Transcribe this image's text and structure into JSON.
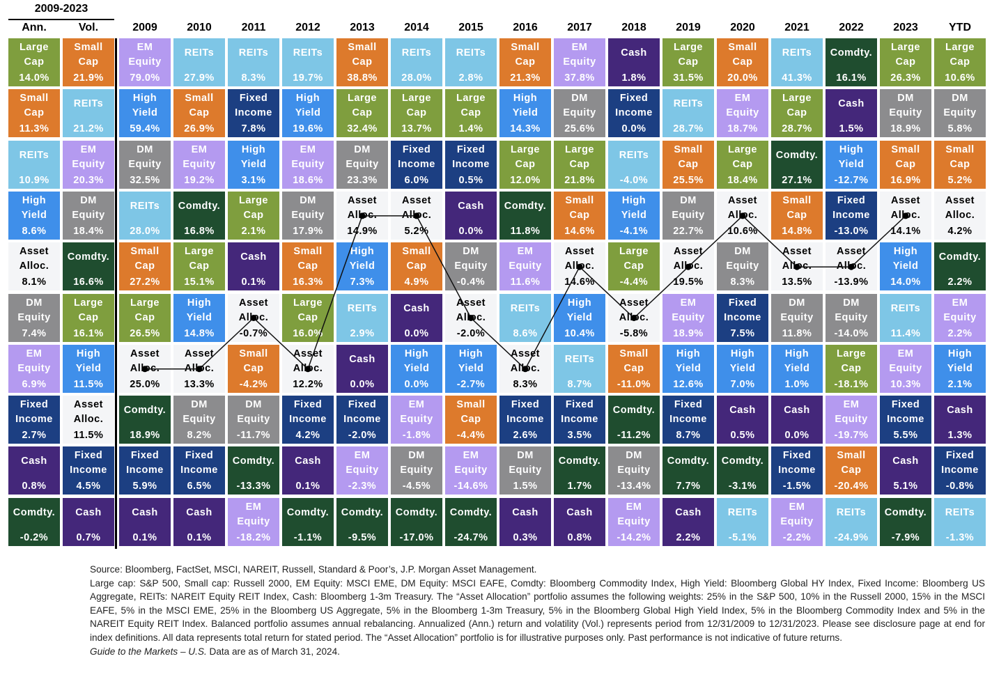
{
  "chart_data": {
    "type": "table",
    "period_header": "2009-2023",
    "colors": {
      "Large Cap": "#7f9e3e",
      "Small Cap": "#dd7a2c",
      "EM Equity": "#b49af0",
      "REITs": "#7ec6e6",
      "High Yield": "#3f8fea",
      "Fixed Income": "#1c3f82",
      "DM Equity": "#8c8c8e",
      "Cash": "#44277a",
      "Comdty.": "#1f4d2f",
      "Asset Alloc.": "#f4f5f7"
    },
    "line_series": "Asset Alloc.",
    "columns": [
      {
        "header": "Ann.",
        "cells": [
          [
            "Large Cap",
            "14.0%"
          ],
          [
            "Small Cap",
            "11.3%"
          ],
          [
            "REITs",
            "10.9%"
          ],
          [
            "High Yield",
            "8.6%"
          ],
          [
            "Asset Alloc.",
            "8.1%"
          ],
          [
            "DM Equity",
            "7.4%"
          ],
          [
            "EM Equity",
            "6.9%"
          ],
          [
            "Fixed Income",
            "2.7%"
          ],
          [
            "Cash",
            "0.8%"
          ],
          [
            "Comdty.",
            "-0.2%"
          ]
        ]
      },
      {
        "header": "Vol.",
        "cells": [
          [
            "Small Cap",
            "21.9%"
          ],
          [
            "REITs",
            "21.2%"
          ],
          [
            "EM Equity",
            "20.3%"
          ],
          [
            "DM Equity",
            "18.4%"
          ],
          [
            "Comdty.",
            "16.6%"
          ],
          [
            "Large Cap",
            "16.1%"
          ],
          [
            "High Yield",
            "11.5%"
          ],
          [
            "Asset Alloc.",
            "11.5%"
          ],
          [
            "Fixed Income",
            "4.5%"
          ],
          [
            "Cash",
            "0.7%"
          ]
        ]
      },
      {
        "header": "2009",
        "cells": [
          [
            "EM Equity",
            "79.0%"
          ],
          [
            "High Yield",
            "59.4%"
          ],
          [
            "DM Equity",
            "32.5%"
          ],
          [
            "REITs",
            "28.0%"
          ],
          [
            "Small Cap",
            "27.2%"
          ],
          [
            "Large Cap",
            "26.5%"
          ],
          [
            "Asset Alloc.",
            "25.0%"
          ],
          [
            "Comdty.",
            "18.9%"
          ],
          [
            "Fixed Income",
            "5.9%"
          ],
          [
            "Cash",
            "0.1%"
          ]
        ]
      },
      {
        "header": "2010",
        "cells": [
          [
            "REITs",
            "27.9%"
          ],
          [
            "Small Cap",
            "26.9%"
          ],
          [
            "EM Equity",
            "19.2%"
          ],
          [
            "Comdty.",
            "16.8%"
          ],
          [
            "Large Cap",
            "15.1%"
          ],
          [
            "High Yield",
            "14.8%"
          ],
          [
            "Asset Alloc.",
            "13.3%"
          ],
          [
            "DM Equity",
            "8.2%"
          ],
          [
            "Fixed Income",
            "6.5%"
          ],
          [
            "Cash",
            "0.1%"
          ]
        ]
      },
      {
        "header": "2011",
        "cells": [
          [
            "REITs",
            "8.3%"
          ],
          [
            "Fixed Income",
            "7.8%"
          ],
          [
            "High Yield",
            "3.1%"
          ],
          [
            "Large Cap",
            "2.1%"
          ],
          [
            "Cash",
            "0.1%"
          ],
          [
            "Asset Alloc.",
            "-0.7%"
          ],
          [
            "Small Cap",
            "-4.2%"
          ],
          [
            "DM Equity",
            "-11.7%"
          ],
          [
            "Comdty.",
            "-13.3%"
          ],
          [
            "EM Equity",
            "-18.2%"
          ]
        ]
      },
      {
        "header": "2012",
        "cells": [
          [
            "REITs",
            "19.7%"
          ],
          [
            "High Yield",
            "19.6%"
          ],
          [
            "EM Equity",
            "18.6%"
          ],
          [
            "DM Equity",
            "17.9%"
          ],
          [
            "Small Cap",
            "16.3%"
          ],
          [
            "Large Cap",
            "16.0%"
          ],
          [
            "Asset Alloc.",
            "12.2%"
          ],
          [
            "Fixed Income",
            "4.2%"
          ],
          [
            "Cash",
            "0.1%"
          ],
          [
            "Comdty.",
            "-1.1%"
          ]
        ]
      },
      {
        "header": "2013",
        "cells": [
          [
            "Small Cap",
            "38.8%"
          ],
          [
            "Large Cap",
            "32.4%"
          ],
          [
            "DM Equity",
            "23.3%"
          ],
          [
            "Asset Alloc.",
            "14.9%"
          ],
          [
            "High Yield",
            "7.3%"
          ],
          [
            "REITs",
            "2.9%"
          ],
          [
            "Cash",
            "0.0%"
          ],
          [
            "Fixed Income",
            "-2.0%"
          ],
          [
            "EM Equity",
            "-2.3%"
          ],
          [
            "Comdty.",
            "-9.5%"
          ]
        ]
      },
      {
        "header": "2014",
        "cells": [
          [
            "REITs",
            "28.0%"
          ],
          [
            "Large Cap",
            "13.7%"
          ],
          [
            "Fixed Income",
            "6.0%"
          ],
          [
            "Asset Alloc.",
            "5.2%"
          ],
          [
            "Small Cap",
            "4.9%"
          ],
          [
            "Cash",
            "0.0%"
          ],
          [
            "High Yield",
            "0.0%"
          ],
          [
            "EM Equity",
            "-1.8%"
          ],
          [
            "DM Equity",
            "-4.5%"
          ],
          [
            "Comdty.",
            "-17.0%"
          ]
        ]
      },
      {
        "header": "2015",
        "cells": [
          [
            "REITs",
            "2.8%"
          ],
          [
            "Large Cap",
            "1.4%"
          ],
          [
            "Fixed Income",
            "0.5%"
          ],
          [
            "Cash",
            "0.0%"
          ],
          [
            "DM Equity",
            "-0.4%"
          ],
          [
            "Asset Alloc.",
            "-2.0%"
          ],
          [
            "High Yield",
            "-2.7%"
          ],
          [
            "Small Cap",
            "-4.4%"
          ],
          [
            "EM Equity",
            "-14.6%"
          ],
          [
            "Comdty.",
            "-24.7%"
          ]
        ]
      },
      {
        "header": "2016",
        "cells": [
          [
            "Small Cap",
            "21.3%"
          ],
          [
            "High Yield",
            "14.3%"
          ],
          [
            "Large Cap",
            "12.0%"
          ],
          [
            "Comdty.",
            "11.8%"
          ],
          [
            "EM Equity",
            "11.6%"
          ],
          [
            "REITs",
            "8.6%"
          ],
          [
            "Asset Alloc.",
            "8.3%"
          ],
          [
            "Fixed Income",
            "2.6%"
          ],
          [
            "DM Equity",
            "1.5%"
          ],
          [
            "Cash",
            "0.3%"
          ]
        ]
      },
      {
        "header": "2017",
        "cells": [
          [
            "EM Equity",
            "37.8%"
          ],
          [
            "DM Equity",
            "25.6%"
          ],
          [
            "Large Cap",
            "21.8%"
          ],
          [
            "Small Cap",
            "14.6%"
          ],
          [
            "Asset Alloc.",
            "14.6%"
          ],
          [
            "High Yield",
            "10.4%"
          ],
          [
            "REITs",
            "8.7%"
          ],
          [
            "Fixed Income",
            "3.5%"
          ],
          [
            "Comdty.",
            "1.7%"
          ],
          [
            "Cash",
            "0.8%"
          ]
        ]
      },
      {
        "header": "2018",
        "cells": [
          [
            "Cash",
            "1.8%"
          ],
          [
            "Fixed Income",
            "0.0%"
          ],
          [
            "REITs",
            "-4.0%"
          ],
          [
            "High Yield",
            "-4.1%"
          ],
          [
            "Large Cap",
            "-4.4%"
          ],
          [
            "Asset Alloc.",
            "-5.8%"
          ],
          [
            "Small Cap",
            "-11.0%"
          ],
          [
            "Comdty.",
            "-11.2%"
          ],
          [
            "DM Equity",
            "-13.4%"
          ],
          [
            "EM Equity",
            "-14.2%"
          ]
        ]
      },
      {
        "header": "2019",
        "cells": [
          [
            "Large Cap",
            "31.5%"
          ],
          [
            "REITs",
            "28.7%"
          ],
          [
            "Small Cap",
            "25.5%"
          ],
          [
            "DM Equity",
            "22.7%"
          ],
          [
            "Asset Alloc.",
            "19.5%"
          ],
          [
            "EM Equity",
            "18.9%"
          ],
          [
            "High Yield",
            "12.6%"
          ],
          [
            "Fixed Income",
            "8.7%"
          ],
          [
            "Comdty.",
            "7.7%"
          ],
          [
            "Cash",
            "2.2%"
          ]
        ]
      },
      {
        "header": "2020",
        "cells": [
          [
            "Small Cap",
            "20.0%"
          ],
          [
            "EM Equity",
            "18.7%"
          ],
          [
            "Large Cap",
            "18.4%"
          ],
          [
            "Asset Alloc.",
            "10.6%"
          ],
          [
            "DM Equity",
            "8.3%"
          ],
          [
            "Fixed Income",
            "7.5%"
          ],
          [
            "High Yield",
            "7.0%"
          ],
          [
            "Cash",
            "0.5%"
          ],
          [
            "Comdty.",
            "-3.1%"
          ],
          [
            "REITs",
            "-5.1%"
          ]
        ]
      },
      {
        "header": "2021",
        "cells": [
          [
            "REITs",
            "41.3%"
          ],
          [
            "Large Cap",
            "28.7%"
          ],
          [
            "Comdty.",
            "27.1%"
          ],
          [
            "Small Cap",
            "14.8%"
          ],
          [
            "Asset Alloc.",
            "13.5%"
          ],
          [
            "DM Equity",
            "11.8%"
          ],
          [
            "High Yield",
            "1.0%"
          ],
          [
            "Cash",
            "0.0%"
          ],
          [
            "Fixed Income",
            "-1.5%"
          ],
          [
            "EM Equity",
            "-2.2%"
          ]
        ]
      },
      {
        "header": "2022",
        "cells": [
          [
            "Comdty.",
            "16.1%"
          ],
          [
            "Cash",
            "1.5%"
          ],
          [
            "High Yield",
            "-12.7%"
          ],
          [
            "Fixed Income",
            "-13.0%"
          ],
          [
            "Asset Alloc.",
            "-13.9%"
          ],
          [
            "DM Equity",
            "-14.0%"
          ],
          [
            "Large Cap",
            "-18.1%"
          ],
          [
            "EM Equity",
            "-19.7%"
          ],
          [
            "Small Cap",
            "-20.4%"
          ],
          [
            "REITs",
            "-24.9%"
          ]
        ]
      },
      {
        "header": "2023",
        "cells": [
          [
            "Large Cap",
            "26.3%"
          ],
          [
            "DM Equity",
            "18.9%"
          ],
          [
            "Small Cap",
            "16.9%"
          ],
          [
            "Asset Alloc.",
            "14.1%"
          ],
          [
            "High Yield",
            "14.0%"
          ],
          [
            "REITs",
            "11.4%"
          ],
          [
            "EM Equity",
            "10.3%"
          ],
          [
            "Fixed Income",
            "5.5%"
          ],
          [
            "Cash",
            "5.1%"
          ],
          [
            "Comdty.",
            "-7.9%"
          ]
        ]
      },
      {
        "header": "YTD",
        "cells": [
          [
            "Large Cap",
            "10.6%"
          ],
          [
            "DM Equity",
            "5.8%"
          ],
          [
            "Small Cap",
            "5.2%"
          ],
          [
            "Asset Alloc.",
            "4.2%"
          ],
          [
            "Comdty.",
            "2.2%"
          ],
          [
            "EM Equity",
            "2.2%"
          ],
          [
            "High Yield",
            "2.1%"
          ],
          [
            "Cash",
            "1.3%"
          ],
          [
            "Fixed Income",
            "-0.8%"
          ],
          [
            "REITs",
            "-1.3%"
          ]
        ]
      }
    ]
  },
  "footer": {
    "source": "Source: Bloomberg, FactSet, MSCI, NAREIT, Russell, Standard & Poor’s, J.P. Morgan Asset Management.",
    "notes": "Large cap: S&P 500, Small cap: Russell 2000, EM Equity: MSCI EME, DM Equity: MSCI EAFE, Comdty: Bloomberg Commodity Index, High Yield: Bloomberg Global HY Index, Fixed Income: Bloomberg US Aggregate, REITs: NAREIT Equity REIT Index, Cash: Bloomberg 1-3m Treasury. The “Asset Allocation” portfolio assumes the following weights: 25% in the S&P 500, 10% in the Russell 2000, 15% in the MSCI EAFE, 5% in the MSCI EME, 25% in the Bloomberg US Aggregate, 5% in the Bloomberg 1-3m Treasury, 5% in the Bloomberg Global High Yield Index, 5% in the Bloomberg Commodity Index and 5% in the NAREIT Equity REIT Index. Balanced portfolio assumes annual rebalancing. Annualized (Ann.) return and volatility (Vol.) represents period from 12/31/2009 to 12/31/2023. Please see disclosure page at end for index definitions. All data represents total return for stated period. The “Asset Allocation” portfolio is for illustrative purposes only. Past performance is not indicative of future returns.",
    "guide_title": "Guide to the Markets – U.S.",
    "as_of": " Data are as of March 31, 2024."
  }
}
